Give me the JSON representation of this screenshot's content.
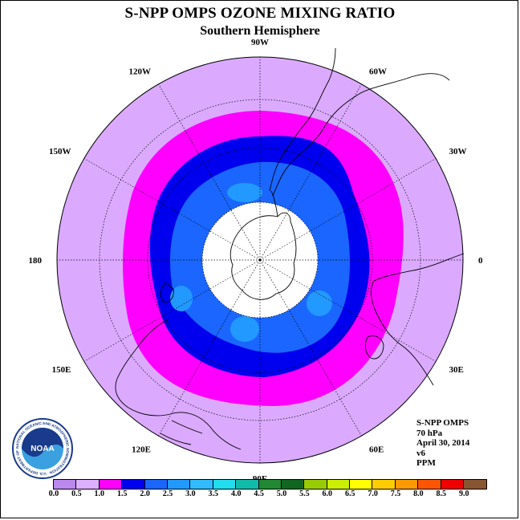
{
  "title": "S-NPP OMPS OZONE MIXING RATIO",
  "subtitle": "Southern Hemisphere",
  "lon_labels": [
    "90W",
    "60W",
    "30W",
    "0",
    "30E",
    "60E",
    "90E",
    "120E",
    "150E",
    "180",
    "150W",
    "120W"
  ],
  "info": {
    "instrument": "S-NPP OMPS",
    "level": "70 hPa",
    "date": "April 30, 2014",
    "version": "v6",
    "units": "PPM"
  },
  "logo": {
    "text": "NOAA",
    "ring_text": "NATIONAL OCEANIC AND ATMOSPHERIC ADMINISTRATION · U.S. DEPARTMENT OF COMMERCE"
  },
  "colorbar": {
    "ticks": [
      "0.0",
      "0.5",
      "1.0",
      "1.5",
      "2.0",
      "2.5",
      "3.0",
      "3.5",
      "4.0",
      "4.5",
      "5.0",
      "5.5",
      "6.0",
      "6.5",
      "7.0",
      "7.5",
      "8.0",
      "8.5",
      "9.0"
    ],
    "colors": [
      "#bb88ee",
      "#ddb0ff",
      "#ff00ff",
      "#0000ee",
      "#1a66ff",
      "#2299ff",
      "#33bbff",
      "#22ddee",
      "#11bbaa",
      "#228833",
      "#116622",
      "#99cc00",
      "#ccee00",
      "#ffff00",
      "#ffcc00",
      "#ff9900",
      "#ff5500",
      "#ee0000",
      "#885533"
    ]
  },
  "map_colors": {
    "outer": "#dbaaff",
    "ring": "#ff00ff",
    "inner_blue": "#0000ee",
    "mid_blue": "#1a66ff",
    "light_blue": "#2299ff",
    "polar_cap": "#ffffff"
  }
}
